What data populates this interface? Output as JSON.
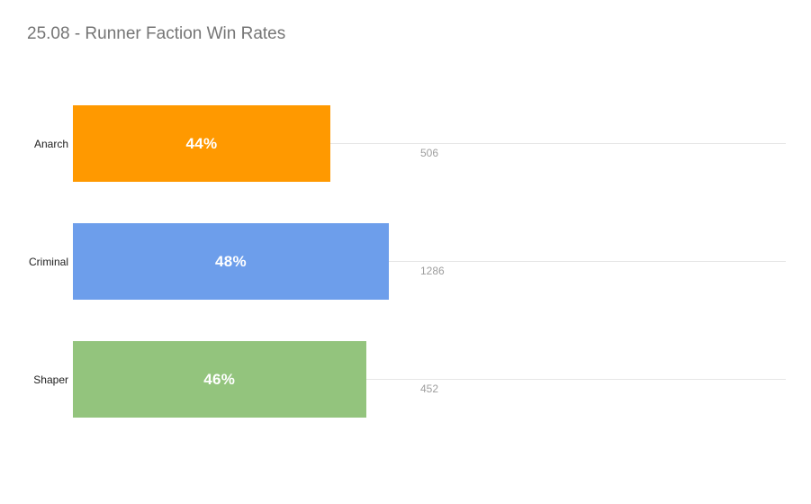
{
  "title": "25.08 - Runner Faction Win Rates",
  "colors": {
    "background": "#ffffff",
    "title_text": "#757575",
    "category_text": "#212121",
    "count_text": "#9e9e9e",
    "gridline": "#e6e6e6",
    "bar_label_text": "#ffffff",
    "anarch_bar": "#ff9900",
    "criminal_bar": "#6d9eeb",
    "shaper_bar": "#93c47d"
  },
  "chart_data": {
    "type": "bar",
    "orientation": "horizontal",
    "title": "25.08 - Runner Faction Win Rates",
    "categories": [
      "Anarch",
      "Criminal",
      "Shaper"
    ],
    "series": [
      {
        "name": "win_rate_pct",
        "values": [
          44,
          48,
          46
        ],
        "labels": [
          "44%",
          "48%",
          "46%"
        ],
        "label_position": "inside-center",
        "colors": [
          "#ff9900",
          "#6d9eeb",
          "#93c47d"
        ]
      },
      {
        "name": "games",
        "values": [
          506,
          1286,
          452
        ],
        "labels": [
          "506",
          "1286",
          "452"
        ],
        "label_position": "below-row-gridline"
      }
    ],
    "legend": "none",
    "grid": "horizontal-line-at-each-row-center",
    "xlabel": "",
    "ylabel": "",
    "bar_fractions": [
      0.361,
      0.443,
      0.411
    ]
  }
}
